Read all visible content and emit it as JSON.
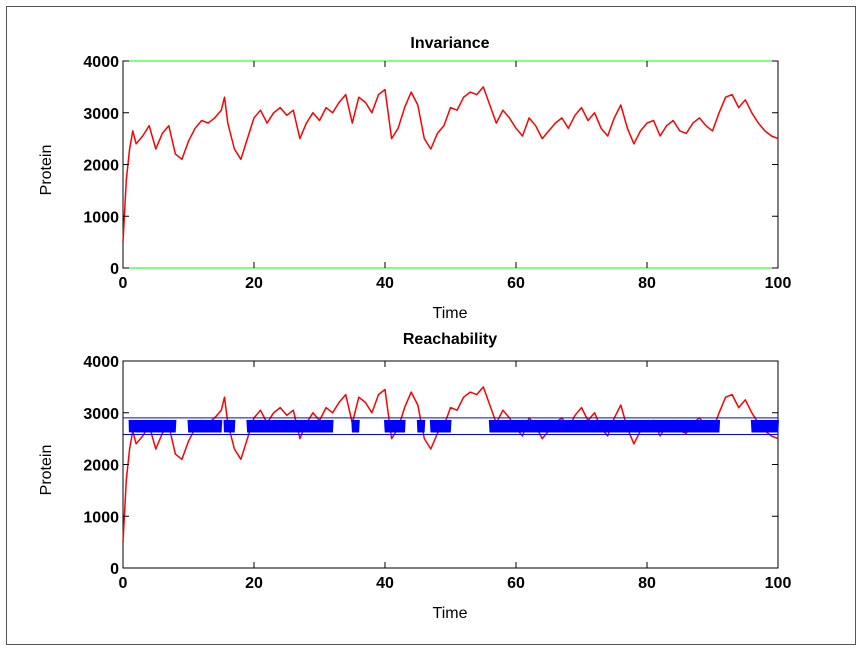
{
  "colors": {
    "trace": "#ff0000",
    "bound": "#00ff00",
    "band": "#0000ff",
    "reach": "#0000ff"
  },
  "chart_data": [
    {
      "type": "line",
      "title": "Invariance",
      "xlabel": "Time",
      "ylabel": "Protein",
      "xlim": [
        0,
        100
      ],
      "ylim": [
        0,
        4000
      ],
      "xticks": [
        "0",
        "20",
        "40",
        "60",
        "80",
        "100"
      ],
      "yticks": [
        "0",
        "1000",
        "2000",
        "3000",
        "4000"
      ],
      "series": [
        {
          "role": "trace",
          "x": [
            0,
            0.5,
            1,
            1.5,
            2,
            3,
            4,
            5,
            6,
            7,
            8,
            9,
            10,
            11,
            12,
            13,
            14,
            15,
            15.5,
            16,
            17,
            18,
            19,
            20,
            21,
            22,
            23,
            24,
            25,
            26,
            27,
            28,
            29,
            30,
            31,
            32,
            33,
            34,
            35,
            36,
            37,
            38,
            39,
            40,
            41,
            42,
            43,
            44,
            45,
            46,
            47,
            48,
            49,
            50,
            51,
            52,
            53,
            54,
            55,
            56,
            57,
            58,
            59,
            60,
            61,
            62,
            63,
            64,
            65,
            66,
            67,
            68,
            69,
            70,
            71,
            72,
            73,
            74,
            75,
            76,
            77,
            78,
            79,
            80,
            81,
            82,
            83,
            84,
            85,
            86,
            87,
            88,
            89,
            90,
            91,
            92,
            93,
            94,
            95,
            96,
            97,
            98,
            99,
            100
          ],
          "y": [
            500,
            1700,
            2300,
            2650,
            2400,
            2550,
            2750,
            2300,
            2600,
            2750,
            2200,
            2100,
            2450,
            2700,
            2850,
            2800,
            2900,
            3050,
            3300,
            2800,
            2300,
            2100,
            2500,
            2900,
            3050,
            2800,
            3000,
            3100,
            2950,
            3050,
            2500,
            2800,
            3000,
            2850,
            3100,
            3000,
            3200,
            3350,
            2800,
            3300,
            3200,
            3000,
            3350,
            3450,
            2500,
            2700,
            3100,
            3400,
            3150,
            2500,
            2300,
            2600,
            2750,
            3100,
            3050,
            3300,
            3400,
            3350,
            3500,
            3150,
            2800,
            3050,
            2900,
            2700,
            2550,
            2900,
            2750,
            2500,
            2650,
            2800,
            2900,
            2700,
            2950,
            3100,
            2850,
            3000,
            2700,
            2550,
            2900,
            3150,
            2700,
            2400,
            2650,
            2800,
            2850,
            2550,
            2750,
            2850,
            2650,
            2600,
            2800,
            2900,
            2750,
            2650,
            3000,
            3300,
            3350,
            3100,
            3250,
            3000,
            2800,
            2650,
            2550,
            2500
          ]
        },
        {
          "role": "bound",
          "x": [
            0,
            100
          ],
          "y": [
            4000,
            4000
          ]
        },
        {
          "role": "bound",
          "x": [
            0,
            100
          ],
          "y": [
            0,
            0
          ]
        }
      ]
    },
    {
      "type": "line",
      "title": "Reachability",
      "xlabel": "Time",
      "ylabel": "Protein",
      "xlim": [
        0,
        100
      ],
      "ylim": [
        0,
        4000
      ],
      "xticks": [
        "0",
        "20",
        "40",
        "60",
        "80",
        "100"
      ],
      "yticks": [
        "0",
        "1000",
        "2000",
        "3000",
        "4000"
      ],
      "series": [
        {
          "role": "trace",
          "x": [
            0,
            0.5,
            1,
            1.5,
            2,
            3,
            4,
            5,
            6,
            7,
            8,
            9,
            10,
            11,
            12,
            13,
            14,
            15,
            15.5,
            16,
            17,
            18,
            19,
            20,
            21,
            22,
            23,
            24,
            25,
            26,
            27,
            28,
            29,
            30,
            31,
            32,
            33,
            34,
            35,
            36,
            37,
            38,
            39,
            40,
            41,
            42,
            43,
            44,
            45,
            46,
            47,
            48,
            49,
            50,
            51,
            52,
            53,
            54,
            55,
            56,
            57,
            58,
            59,
            60,
            61,
            62,
            63,
            64,
            65,
            66,
            67,
            68,
            69,
            70,
            71,
            72,
            73,
            74,
            75,
            76,
            77,
            78,
            79,
            80,
            81,
            82,
            83,
            84,
            85,
            86,
            87,
            88,
            89,
            90,
            91,
            92,
            93,
            94,
            95,
            96,
            97,
            98,
            99,
            100
          ],
          "y": [
            500,
            1700,
            2300,
            2650,
            2400,
            2550,
            2750,
            2300,
            2600,
            2750,
            2200,
            2100,
            2450,
            2700,
            2850,
            2800,
            2900,
            3050,
            3300,
            2800,
            2300,
            2100,
            2500,
            2900,
            3050,
            2800,
            3000,
            3100,
            2950,
            3050,
            2500,
            2800,
            3000,
            2850,
            3100,
            3000,
            3200,
            3350,
            2800,
            3300,
            3200,
            3000,
            3350,
            3450,
            2500,
            2700,
            3100,
            3400,
            3150,
            2500,
            2300,
            2600,
            2750,
            3100,
            3050,
            3300,
            3400,
            3350,
            3500,
            3150,
            2800,
            3050,
            2900,
            2700,
            2550,
            2900,
            2750,
            2500,
            2650,
            2800,
            2900,
            2700,
            2950,
            3100,
            2850,
            3000,
            2700,
            2550,
            2900,
            3150,
            2700,
            2400,
            2650,
            2800,
            2850,
            2550,
            2750,
            2850,
            2650,
            2600,
            2800,
            2900,
            2750,
            2650,
            3000,
            3300,
            3350,
            3100,
            3250,
            3000,
            2800,
            2650,
            2550,
            2500
          ]
        },
        {
          "role": "band",
          "x": [
            0,
            100
          ],
          "y": [
            2900,
            2900
          ]
        },
        {
          "role": "band",
          "x": [
            0,
            100
          ],
          "y": [
            2580,
            2580
          ]
        },
        {
          "role": "reach",
          "lower": 2580,
          "upper": 2900
        }
      ]
    }
  ]
}
